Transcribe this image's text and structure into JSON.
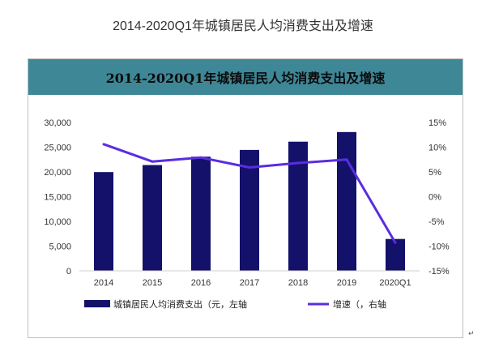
{
  "page_title": "2014-2020Q1年城镇居民人均消费支出及增速",
  "marker_text": "↵",
  "chart_data": {
    "type": "bar+line",
    "title": "2014-2020Q1年城镇居民人均消费支出及增速",
    "categories": [
      "2014",
      "2015",
      "2016",
      "2017",
      "2018",
      "2019",
      "2020Q1"
    ],
    "series": [
      {
        "name": "城镇居民人均消费支出（元，左轴",
        "type": "bar",
        "axis": "left",
        "values": [
          19968,
          21392,
          23079,
          24445,
          26112,
          28063,
          6445
        ],
        "color": "#14116a"
      },
      {
        "name": "增速（，右轴",
        "type": "line",
        "axis": "right",
        "values": [
          10.6,
          7.1,
          7.9,
          5.9,
          6.8,
          7.5,
          -9.3
        ],
        "color": "#5a2de0"
      }
    ],
    "y_left": {
      "min": 0,
      "max": 30000,
      "ticks": [
        "30,000",
        "25,000",
        "20,000",
        "15,000",
        "10,000",
        "5,000",
        "0"
      ]
    },
    "y_right": {
      "min": -15,
      "max": 15,
      "ticks": [
        "15%",
        "10%",
        "5%",
        "0%",
        "-5%",
        "-10%",
        "-15%"
      ]
    },
    "legend": {
      "position": "bottom",
      "labels": [
        "城镇居民人均消费支出（元，左轴",
        "增速（，右轴"
      ]
    }
  }
}
